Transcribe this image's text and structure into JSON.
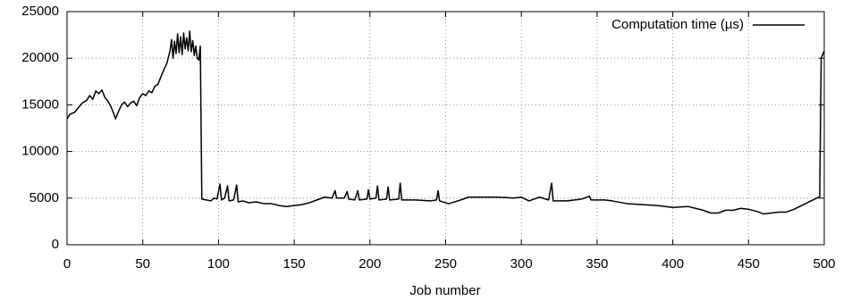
{
  "chart_data": {
    "type": "line",
    "xlabel": "Job number",
    "legend": "top right",
    "grid": true,
    "xlim": [
      0,
      500
    ],
    "xticks": [
      0,
      50,
      100,
      150,
      200,
      250,
      300,
      350,
      400,
      450,
      500
    ],
    "ylim": [
      0,
      25000
    ],
    "yticks": [
      0,
      5000,
      10000,
      15000,
      20000,
      25000
    ],
    "x": [
      0,
      2,
      5,
      8,
      10,
      13,
      15,
      17,
      19,
      21,
      23,
      25,
      27,
      29,
      31,
      32,
      34,
      36,
      38,
      40,
      42,
      44,
      46,
      48,
      50,
      52,
      54,
      56,
      58,
      60,
      62,
      64,
      66,
      68,
      69,
      70,
      71,
      72,
      73,
      74,
      75,
      76,
      77,
      78,
      79,
      80,
      81,
      82,
      83,
      84,
      85,
      86,
      87,
      88,
      89,
      92,
      95,
      97,
      99,
      101,
      102,
      104,
      106,
      107,
      110,
      112,
      113,
      116,
      120,
      125,
      130,
      135,
      140,
      145,
      150,
      155,
      160,
      165,
      170,
      175,
      177,
      178,
      183,
      185,
      186,
      190,
      192,
      193,
      198,
      199,
      200,
      204,
      205,
      206,
      211,
      212,
      213,
      219,
      220,
      221,
      230,
      240,
      244,
      245,
      246,
      252,
      260,
      265,
      275,
      285,
      295,
      300,
      305,
      312,
      318,
      320,
      321,
      330,
      340,
      345,
      346,
      355,
      360,
      370,
      380,
      390,
      400,
      410,
      415,
      420,
      425,
      430,
      435,
      440,
      445,
      450,
      455,
      460,
      465,
      470,
      475,
      480,
      485,
      490,
      495,
      497,
      498,
      500
    ],
    "series": [
      {
        "name": "Computation time (µs)",
        "color": "#000000",
        "values": [
          13500,
          14000,
          14200,
          14800,
          15200,
          15500,
          16000,
          15600,
          16500,
          16200,
          16600,
          15800,
          15400,
          14800,
          14000,
          13500,
          14300,
          15000,
          15300,
          14800,
          15200,
          15400,
          14900,
          15800,
          16200,
          16000,
          16500,
          16300,
          17000,
          17200,
          18000,
          18800,
          19500,
          20800,
          22000,
          20000,
          21800,
          20500,
          22600,
          20600,
          22300,
          20400,
          22700,
          21000,
          22200,
          20800,
          22900,
          20700,
          21900,
          20300,
          21300,
          20000,
          19800,
          21300,
          4900,
          4800,
          4700,
          5000,
          4900,
          6500,
          4800,
          5000,
          6300,
          4700,
          4800,
          6400,
          4600,
          4700,
          4500,
          4600,
          4400,
          4400,
          4200,
          4100,
          4200,
          4300,
          4500,
          4800,
          5100,
          5000,
          5800,
          5000,
          5000,
          5700,
          4900,
          4800,
          5800,
          4800,
          4900,
          5900,
          4900,
          5000,
          6300,
          4800,
          4900,
          6200,
          4800,
          4900,
          6600,
          4800,
          4800,
          4700,
          4800,
          5800,
          4700,
          4400,
          4800,
          5100,
          5100,
          5100,
          5000,
          5100,
          4700,
          5100,
          4800,
          6600,
          4700,
          4700,
          4900,
          5200,
          4800,
          4800,
          4700,
          4400,
          4300,
          4200,
          4000,
          4100,
          3900,
          3700,
          3400,
          3400,
          3700,
          3700,
          3900,
          3800,
          3600,
          3300,
          3400,
          3500,
          3500,
          3800,
          4200,
          4600,
          5000,
          5100,
          20000,
          20800
        ]
      }
    ]
  }
}
